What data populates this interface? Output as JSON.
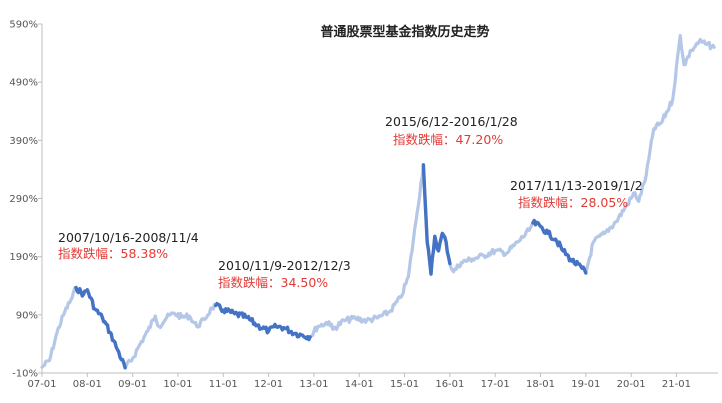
{
  "chart_data": {
    "type": "line",
    "title": "普通股票型基金指数历史走势",
    "xlabel": "",
    "ylabel": "",
    "x_ticks": [
      "07-01",
      "08-01",
      "09-01",
      "10-01",
      "11-01",
      "12-01",
      "13-01",
      "14-01",
      "15-01",
      "16-01",
      "17-01",
      "18-01",
      "19-01",
      "20-01",
      "21-01"
    ],
    "y_ticks": [
      "-10%",
      "90%",
      "190%",
      "290%",
      "390%",
      "490%",
      "590%"
    ],
    "ylim": [
      -10,
      590
    ],
    "xlim": [
      "2007-01",
      "2021-12"
    ],
    "grid": false,
    "legend": "none",
    "colors": {
      "line": "#b4c7e7",
      "drawdown": "#4472c4",
      "drop_text": "#e53935",
      "axis": "#bfbfbf"
    },
    "series": [
      {
        "values": [
          [
            "2007-01",
            0
          ],
          [
            "2007-03",
            12
          ],
          [
            "2007-05",
            60
          ],
          [
            "2007-07",
            95
          ],
          [
            "2007-09",
            120
          ],
          [
            "2007-10",
            137
          ],
          [
            "2007-12",
            125
          ],
          [
            "2008-01",
            133
          ],
          [
            "2008-03",
            100
          ],
          [
            "2008-05",
            85
          ],
          [
            "2008-07",
            60
          ],
          [
            "2008-09",
            30
          ],
          [
            "2008-11",
            -1
          ],
          [
            "2009-01",
            15
          ],
          [
            "2009-03",
            40
          ],
          [
            "2009-05",
            62
          ],
          [
            "2009-07",
            88
          ],
          [
            "2009-08",
            70
          ],
          [
            "2009-10",
            85
          ],
          [
            "2009-12",
            93
          ],
          [
            "2010-02",
            86
          ],
          [
            "2010-04",
            88
          ],
          [
            "2010-06",
            70
          ],
          [
            "2010-08",
            82
          ],
          [
            "2010-10",
            102
          ],
          [
            "2010-11",
            106
          ],
          [
            "2011-01",
            98
          ],
          [
            "2011-04",
            92
          ],
          [
            "2011-07",
            86
          ],
          [
            "2011-10",
            72
          ],
          [
            "2012-01",
            62
          ],
          [
            "2012-03",
            70
          ],
          [
            "2012-05",
            68
          ],
          [
            "2012-08",
            58
          ],
          [
            "2012-10",
            55
          ],
          [
            "2012-12",
            52
          ],
          [
            "2013-02",
            70
          ],
          [
            "2013-05",
            78
          ],
          [
            "2013-06",
            65
          ],
          [
            "2013-09",
            80
          ],
          [
            "2013-12",
            84
          ],
          [
            "2014-03",
            80
          ],
          [
            "2014-06",
            85
          ],
          [
            "2014-09",
            95
          ],
          [
            "2014-12",
            120
          ],
          [
            "2015-02",
            155
          ],
          [
            "2015-04",
            250
          ],
          [
            "2015-06",
            348
          ],
          [
            "2015-07",
            215
          ],
          [
            "2015-08",
            160
          ],
          [
            "2015-09",
            225
          ],
          [
            "2015-10",
            200
          ],
          [
            "2015-11",
            230
          ],
          [
            "2015-12",
            215
          ],
          [
            "2016-01",
            178
          ],
          [
            "2016-02",
            164
          ],
          [
            "2016-04",
            180
          ],
          [
            "2016-07",
            186
          ],
          [
            "2016-10",
            192
          ],
          [
            "2017-01",
            200
          ],
          [
            "2017-04",
            196
          ],
          [
            "2017-07",
            215
          ],
          [
            "2017-10",
            235
          ],
          [
            "2017-11",
            248
          ],
          [
            "2018-01",
            242
          ],
          [
            "2018-03",
            230
          ],
          [
            "2018-05",
            220
          ],
          [
            "2018-07",
            200
          ],
          [
            "2018-09",
            185
          ],
          [
            "2018-12",
            170
          ],
          [
            "2019-01",
            162
          ],
          [
            "2019-03",
            215
          ],
          [
            "2019-06",
            230
          ],
          [
            "2019-09",
            250
          ],
          [
            "2019-12",
            280
          ],
          [
            "2020-02",
            300
          ],
          [
            "2020-03",
            285
          ],
          [
            "2020-05",
            330
          ],
          [
            "2020-07",
            410
          ],
          [
            "2020-09",
            420
          ],
          [
            "2020-12",
            460
          ],
          [
            "2021-02",
            570
          ],
          [
            "2021-03",
            520
          ],
          [
            "2021-05",
            545
          ],
          [
            "2021-07",
            560
          ],
          [
            "2021-09",
            555
          ],
          [
            "2021-11",
            550
          ]
        ]
      }
    ],
    "drawdowns": [
      {
        "period": "2007/10/16-2008/11/4",
        "drop": "指数跌幅：58.38%",
        "start": "2007-10",
        "end": "2008-11"
      },
      {
        "period": "2010/11/9-2012/12/3",
        "drop": "指数跌幅：34.50%",
        "start": "2010-11",
        "end": "2012-12"
      },
      {
        "period": "2015/6/12-2016/1/28",
        "drop": "指数跌幅：47.20%",
        "start": "2015-06",
        "end": "2016-01"
      },
      {
        "period": "2017/11/13-2019/1/2",
        "drop": "指数跌幅：28.05%",
        "start": "2017-11",
        "end": "2019-01"
      }
    ]
  }
}
